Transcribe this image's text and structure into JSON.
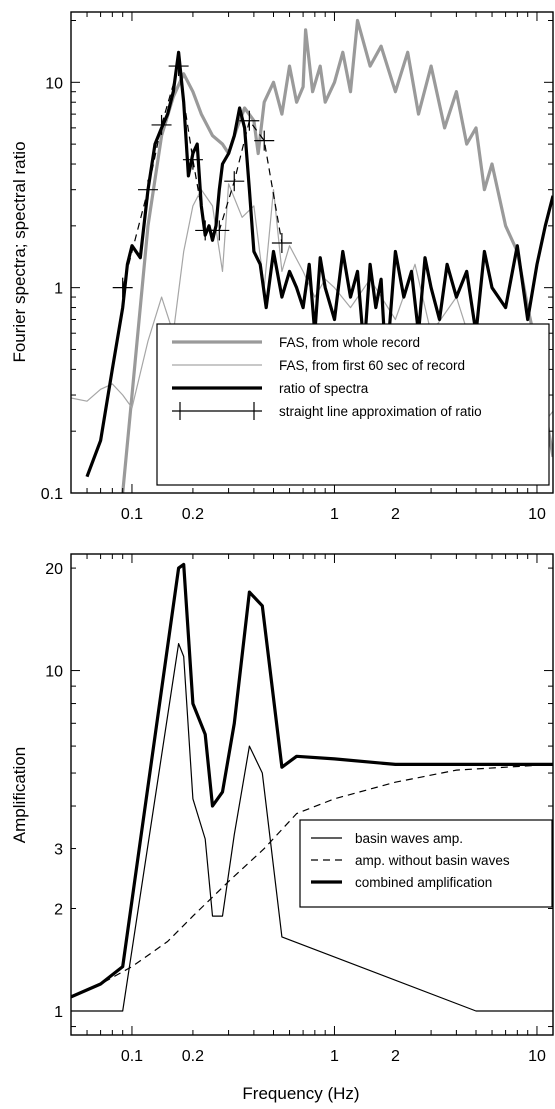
{
  "xlabel": "Frequency (Hz)",
  "chart_data": [
    {
      "type": "line",
      "scale": "log-log",
      "xlim": [
        0.05,
        12
      ],
      "ylim": [
        0.1,
        22
      ],
      "ylabel": "Fourier spectra; spectral ratio",
      "xticks": [
        0.1,
        0.2,
        1,
        2,
        10
      ],
      "xtick_labels": [
        "0.1",
        "0.2",
        "1",
        "2",
        "10"
      ],
      "yticks": [
        0.1,
        1,
        10
      ],
      "ytick_labels": [
        "0.1",
        "1",
        "10"
      ],
      "legend_position": "bottom-right",
      "series": [
        {
          "name": "FAS, from whole record",
          "color": "#9a9a9a",
          "width": 3.2,
          "style": "solid",
          "x": [
            0.09,
            0.1,
            0.12,
            0.14,
            0.16,
            0.18,
            0.2,
            0.22,
            0.25,
            0.28,
            0.3,
            0.33,
            0.36,
            0.4,
            0.42,
            0.45,
            0.5,
            0.55,
            0.6,
            0.65,
            0.7,
            0.72,
            0.78,
            0.85,
            0.9,
            1.0,
            1.1,
            1.2,
            1.3,
            1.5,
            1.7,
            2.0,
            2.3,
            2.6,
            3.0,
            3.5,
            4.0,
            4.5,
            5.0,
            5.5,
            6.0,
            7.0,
            8.0,
            9.0,
            10.0,
            11.0,
            12.0
          ],
          "y": [
            0.1,
            0.3,
            2.0,
            5.5,
            8.5,
            11.0,
            9.0,
            7.0,
            5.5,
            5.0,
            4.5,
            6.0,
            7.5,
            6.5,
            4.5,
            8.0,
            10.0,
            7.0,
            12.0,
            8.0,
            9.5,
            18.0,
            9.0,
            12.0,
            8.0,
            10.0,
            14.0,
            9.0,
            20.0,
            12.0,
            15.0,
            9.0,
            14.0,
            7.0,
            12.0,
            6.0,
            9.0,
            5.0,
            6.0,
            3.0,
            4.0,
            2.0,
            1.5,
            0.8,
            0.5,
            0.25,
            0.15
          ]
        },
        {
          "name": "FAS, from first 60 sec of record",
          "color": "#a6a6a6",
          "width": 1.2,
          "style": "solid",
          "x": [
            0.05,
            0.06,
            0.07,
            0.08,
            0.09,
            0.1,
            0.12,
            0.14,
            0.16,
            0.18,
            0.2,
            0.22,
            0.25,
            0.28,
            0.3,
            0.35,
            0.4,
            0.45,
            0.5,
            0.55,
            0.6,
            0.7,
            0.8,
            0.9,
            1.0,
            1.2,
            1.5,
            2.0,
            2.5,
            3.0,
            4.0,
            5.0,
            6.0,
            7.0,
            8.0,
            10.0,
            12.0
          ],
          "y": [
            0.29,
            0.28,
            0.32,
            0.34,
            0.3,
            0.26,
            0.55,
            0.9,
            0.6,
            1.5,
            2.5,
            3.0,
            2.5,
            1.2,
            3.2,
            2.2,
            2.5,
            1.0,
            3.0,
            1.2,
            1.6,
            1.2,
            0.9,
            1.1,
            1.0,
            0.8,
            1.1,
            0.7,
            1.3,
            0.6,
            0.9,
            0.45,
            0.6,
            0.4,
            0.3,
            0.2,
            0.25
          ]
        },
        {
          "name": "ratio of spectra",
          "color": "#000000",
          "width": 3.2,
          "style": "solid",
          "x": [
            0.06,
            0.07,
            0.08,
            0.09,
            0.095,
            0.1,
            0.11,
            0.12,
            0.13,
            0.14,
            0.15,
            0.16,
            0.17,
            0.18,
            0.19,
            0.2,
            0.21,
            0.22,
            0.23,
            0.24,
            0.25,
            0.26,
            0.27,
            0.28,
            0.3,
            0.32,
            0.34,
            0.36,
            0.38,
            0.4,
            0.43,
            0.46,
            0.5,
            0.55,
            0.6,
            0.65,
            0.7,
            0.75,
            0.8,
            0.85,
            0.9,
            1.0,
            1.1,
            1.2,
            1.3,
            1.4,
            1.5,
            1.6,
            1.7,
            1.8,
            2.0,
            2.2,
            2.4,
            2.6,
            2.8,
            3.0,
            3.3,
            3.6,
            4.0,
            4.5,
            5.0,
            5.5,
            6.0,
            7.0,
            8.0,
            9.0,
            10.0,
            11.0,
            12.0
          ],
          "y": [
            0.12,
            0.18,
            0.4,
            0.8,
            1.3,
            1.6,
            1.4,
            3.0,
            5.0,
            6.0,
            7.0,
            9.0,
            14.0,
            8.0,
            3.5,
            4.5,
            5.0,
            2.5,
            1.8,
            2.0,
            1.7,
            2.0,
            3.0,
            4.0,
            4.5,
            5.5,
            7.5,
            6.0,
            3.0,
            1.5,
            1.3,
            0.8,
            1.5,
            0.9,
            1.2,
            1.0,
            0.8,
            1.3,
            0.6,
            1.4,
            1.0,
            0.7,
            1.5,
            0.9,
            1.2,
            0.5,
            1.3,
            0.8,
            1.1,
            0.4,
            1.5,
            0.9,
            1.2,
            0.6,
            1.4,
            1.0,
            0.7,
            1.3,
            0.9,
            1.2,
            0.6,
            1.5,
            1.0,
            0.8,
            1.6,
            0.7,
            1.3,
            2.0,
            2.8
          ]
        },
        {
          "name": "straight line approximation of ratio",
          "color": "#000000",
          "width": 1.2,
          "style": "dashed",
          "marker": "+",
          "x": [
            0.09,
            0.12,
            0.14,
            0.17,
            0.2,
            0.23,
            0.27,
            0.32,
            0.38,
            0.45,
            0.55
          ],
          "y": [
            1.0,
            3.0,
            6.2,
            12.0,
            4.2,
            1.9,
            1.9,
            3.3,
            6.5,
            5.2,
            1.65
          ]
        }
      ]
    },
    {
      "type": "line",
      "scale": "log-log",
      "xlim": [
        0.05,
        12
      ],
      "ylim": [
        0.85,
        22
      ],
      "ylabel": "Amplification",
      "xticks": [
        0.1,
        0.2,
        1,
        2,
        10
      ],
      "xtick_labels": [
        "0.1",
        "0.2",
        "1",
        "2",
        "10"
      ],
      "yticks": [
        1,
        2,
        3,
        10,
        20
      ],
      "ytick_labels": [
        "1",
        "2",
        "3",
        "10",
        "20"
      ],
      "legend_position": "center-right",
      "series": [
        {
          "name": "basin waves amp.",
          "color": "#000000",
          "width": 1.2,
          "style": "solid",
          "x": [
            0.05,
            0.09,
            0.17,
            0.18,
            0.2,
            0.23,
            0.25,
            0.28,
            0.32,
            0.38,
            0.44,
            0.55,
            5.0,
            12.0
          ],
          "y": [
            1.0,
            1.0,
            12.0,
            11.0,
            4.2,
            3.2,
            1.9,
            1.9,
            3.3,
            6.0,
            5.0,
            1.65,
            1.0,
            1.0
          ]
        },
        {
          "name": "amp. without basin waves",
          "color": "#000000",
          "width": 1.2,
          "style": "dashed",
          "x": [
            0.05,
            0.07,
            0.1,
            0.15,
            0.2,
            0.3,
            0.45,
            0.65,
            1.0,
            2.0,
            4.0,
            12.0
          ],
          "y": [
            1.1,
            1.2,
            1.35,
            1.6,
            1.9,
            2.4,
            3.0,
            3.8,
            4.2,
            4.7,
            5.1,
            5.3
          ]
        },
        {
          "name": "combined amplification",
          "color": "#000000",
          "width": 3.2,
          "style": "solid",
          "x": [
            0.05,
            0.07,
            0.09,
            0.17,
            0.18,
            0.2,
            0.23,
            0.25,
            0.28,
            0.32,
            0.38,
            0.44,
            0.55,
            0.65,
            1.0,
            2.0,
            5.0,
            12.0
          ],
          "y": [
            1.1,
            1.2,
            1.35,
            20.0,
            20.5,
            8.0,
            6.5,
            4.0,
            4.4,
            7.0,
            17.0,
            15.5,
            5.2,
            5.6,
            5.5,
            5.3,
            5.3,
            5.3
          ]
        }
      ]
    }
  ]
}
